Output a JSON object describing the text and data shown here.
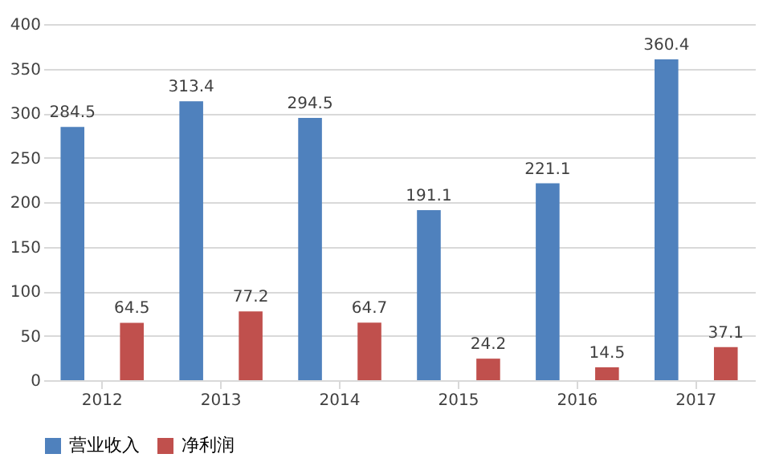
{
  "chart_data": {
    "type": "bar",
    "categories": [
      "2012",
      "2013",
      "2014",
      "2015",
      "2016",
      "2017"
    ],
    "series": [
      {
        "name": "营业收入",
        "color": "#4f81bd",
        "values": [
          284.5,
          313.4,
          294.5,
          191.1,
          221.1,
          360.4
        ]
      },
      {
        "name": "净利润",
        "color": "#c0504d",
        "values": [
          64.5,
          77.2,
          64.7,
          24.2,
          14.5,
          37.1
        ]
      }
    ],
    "ylim": [
      0,
      400
    ],
    "yticks": [
      0,
      50,
      100,
      150,
      200,
      250,
      300,
      350,
      400
    ],
    "grid": "y",
    "legend": "bottom",
    "data_labels": true
  }
}
